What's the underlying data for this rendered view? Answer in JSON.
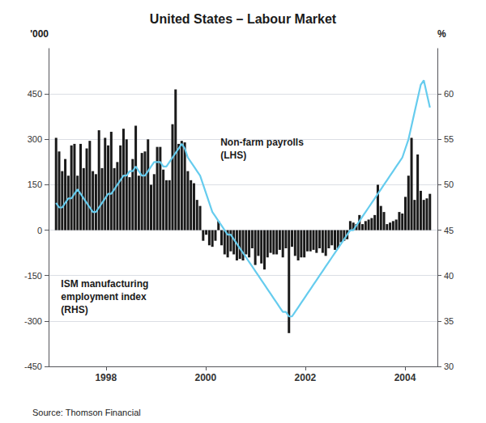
{
  "chart_data": {
    "type": "bar",
    "title": "United States – Labour Market",
    "ylabel": "'000",
    "y2label": "%",
    "annotations": [
      "Non-farm payrolls\n(LHS)",
      "ISM manufacturing\nemployment index\n(RHS)"
    ],
    "source": "Source: Thomson Financial",
    "x": [
      1997,
      1997.0615,
      1997.123,
      1997.1844,
      1997.2459,
      1997.3074,
      1997.3689,
      1997.4303,
      1997.4918,
      1997.5533,
      1997.6148,
      1997.6762,
      1997.7377,
      1997.7992,
      1997.8607,
      1997.9221,
      1997.9836,
      1998.0451,
      1998.1066,
      1998.168,
      1998.2295,
      1998.291,
      1998.3525,
      1998.4139,
      1998.4754,
      1998.5369,
      1998.5984,
      1998.6598,
      1998.7213,
      1998.7828,
      1998.8443,
      1998.9057,
      1998.9672,
      1999.0287,
      1999.0902,
      1999.1516,
      1999.2131,
      1999.2746,
      1999.3361,
      1999.3975,
      1999.459,
      1999.5205,
      1999.582,
      1999.6434,
      1999.7049,
      1999.7664,
      1999.8279,
      1999.8893,
      1999.9508,
      2000.0123,
      2000.0738,
      2000.1352,
      2000.1967,
      2000.2582,
      2000.3197,
      2000.3811,
      2000.4426,
      2000.5041,
      2000.5656,
      2000.627,
      2000.6885,
      2000.75,
      2000.8115,
      2000.873,
      2000.9344,
      2000.9959,
      2001.0574,
      2001.1189,
      2001.1803,
      2001.2418,
      2001.3033,
      2001.3648,
      2001.4262,
      2001.4877,
      2001.5492,
      2001.6107,
      2001.6721,
      2001.7336,
      2001.7951,
      2001.8566,
      2001.918,
      2001.9795,
      2002.041,
      2002.1025,
      2002.1639,
      2002.2254,
      2002.2869,
      2002.3484,
      2002.4098,
      2002.4713,
      2002.5328,
      2002.5943,
      2002.6557,
      2002.7172,
      2002.7787,
      2002.8402,
      2002.9016,
      2002.9631,
      2003.0246,
      2003.0861,
      2003.1475,
      2003.209,
      2003.2705,
      2003.332,
      2003.3934,
      2003.4549,
      2003.5164,
      2003.5779,
      2003.6393,
      2003.7008,
      2003.7623,
      2003.8238,
      2003.8852,
      2003.9467,
      2004.0082,
      2004.0697,
      2004.1311,
      2004.1926,
      2004.2541,
      2004.3156,
      2004.377,
      2004.4385,
      2004.5
    ],
    "xlim": [
      1996.85,
      2004.65
    ],
    "xticks": [
      1998,
      2000,
      2002,
      2004
    ],
    "ylim": [
      -450,
      600
    ],
    "yticks": [
      -450,
      -300,
      -150,
      0,
      150,
      300,
      450
    ],
    "y2lim": [
      30,
      65
    ],
    "y2ticks": [
      30,
      35,
      40,
      45,
      50,
      55,
      60
    ],
    "grid": true,
    "series": [
      {
        "type": "bar",
        "color": "#1a1a1a",
        "values": [
          305,
          260,
          195,
          235,
          180,
          280,
          285,
          180,
          285,
          205,
          270,
          295,
          195,
          185,
          330,
          205,
          305,
          280,
          325,
          205,
          225,
          280,
          335,
          300,
          175,
          235,
          345,
          180,
          255,
          260,
          300,
          150,
          185,
          275,
          275,
          200,
          165,
          165,
          350,
          465,
          285,
          295,
          290,
          195,
          165,
          155,
          100,
          80,
          -35,
          -15,
          -50,
          -55,
          -35,
          30,
          -50,
          -80,
          -90,
          -70,
          -80,
          -100,
          -95,
          -100,
          -80,
          -90,
          -60,
          -115,
          -85,
          -110,
          -130,
          -90,
          -75,
          -80,
          -80,
          -65,
          -90,
          -60,
          -340,
          -55,
          -85,
          -100,
          -90,
          -90,
          -70,
          -70,
          -65,
          -75,
          -60,
          -75,
          -85,
          -60,
          -50,
          -65,
          -60,
          -40,
          -35,
          -30,
          30,
          25,
          20,
          50,
          20,
          30,
          35,
          40,
          50,
          150,
          80,
          60,
          20,
          25,
          30,
          35,
          60,
          55,
          110,
          180,
          305,
          100,
          250,
          130,
          100,
          105,
          120
        ]
      },
      {
        "type": "line",
        "color": "#66ccee",
        "axis": "y2",
        "values": [
          48.0,
          47.5,
          47.5,
          48.0,
          48.5,
          48.5,
          49.0,
          49.5,
          49.0,
          48.5,
          48.0,
          47.5,
          47.0,
          47.0,
          47.5,
          48.0,
          48.5,
          49.0,
          49.0,
          49.5,
          50.0,
          50.5,
          51.0,
          51.0,
          51.5,
          51.5,
          52.0,
          51.5,
          51.0,
          51.0,
          51.5,
          52.0,
          52.5,
          52.5,
          52.5,
          52.0,
          52.0,
          52.5,
          53.0,
          53.5,
          54.0,
          54.5,
          54.0,
          53.0,
          52.5,
          52.0,
          51.5,
          51.0,
          50.0,
          49.0,
          48.0,
          47.0,
          46.5,
          46.0,
          45.5,
          45.0,
          44.5,
          44.5,
          44.0,
          43.5,
          43.0,
          42.5,
          42.0,
          41.5,
          41.0,
          40.5,
          40.0,
          39.5,
          39.0,
          38.5,
          38.0,
          37.5,
          37.0,
          36.5,
          36.0,
          36.0,
          35.5,
          35.5,
          36.0,
          36.5,
          37.0,
          37.5,
          38.0,
          38.5,
          39.0,
          39.5,
          40.0,
          40.5,
          41.0,
          41.5,
          42.0,
          42.5,
          43.0,
          43.5,
          44.0,
          44.5,
          45.0,
          45.0,
          45.5,
          46.0,
          46.5,
          47.0,
          47.5,
          48.0,
          48.5,
          49.0,
          49.5,
          50.0,
          50.5,
          51.0,
          51.5,
          52.0,
          52.5,
          53.0,
          54.0,
          55.0,
          56.5,
          58.0,
          59.5,
          61.0,
          61.5,
          60.0,
          58.5
        ]
      }
    ]
  }
}
